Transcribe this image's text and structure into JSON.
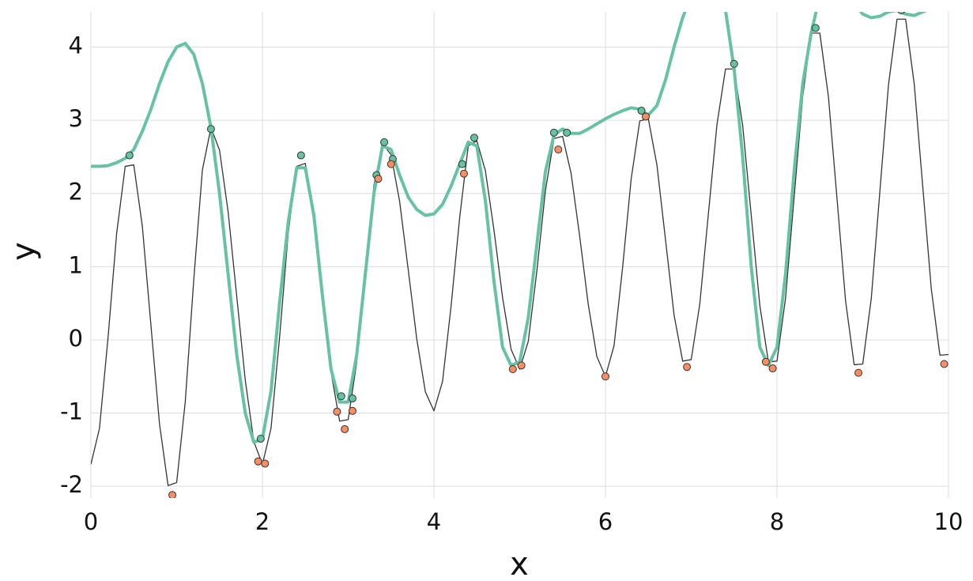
{
  "chart_data": {
    "type": "line",
    "x_label": "x",
    "y_label": "y",
    "xlim": [
      0,
      10
    ],
    "ylim": [
      -2.16,
      4.48
    ],
    "xticks": [
      0,
      2,
      4,
      6,
      8,
      10
    ],
    "yticks": [
      -2,
      -1,
      0,
      1,
      2,
      3,
      4
    ],
    "grid": true,
    "series": [
      {
        "style": "line",
        "color": "#333333",
        "x": [
          0,
          0.1,
          0.2,
          0.3,
          0.4,
          0.5,
          0.6,
          0.7,
          0.8,
          0.9,
          1,
          1.1,
          1.2,
          1.3,
          1.4,
          1.5,
          1.6,
          1.7,
          1.8,
          1.9,
          2,
          2.1,
          2.2,
          2.3,
          2.4,
          2.5,
          2.6,
          2.7,
          2.8,
          2.9,
          3,
          3.1,
          3.2,
          3.3,
          3.4,
          3.5,
          3.6,
          3.7,
          3.8,
          3.9,
          4,
          4.1,
          4.2,
          4.3,
          4.4,
          4.5,
          4.6,
          4.7,
          4.8,
          4.9,
          5,
          5.1,
          5.2,
          5.3,
          5.4,
          5.5,
          5.6,
          5.7,
          5.8,
          5.9,
          6,
          6.1,
          6.2,
          6.3,
          6.4,
          6.5,
          6.6,
          6.7,
          6.8,
          6.9,
          7,
          7.1,
          7.2,
          7.3,
          7.4,
          7.5,
          7.6,
          7.7,
          7.8,
          7.9,
          8,
          8.1,
          8.2,
          8.3,
          8.4,
          8.5,
          8.6,
          8.7,
          8.8,
          8.9,
          9,
          9.1,
          9.2,
          9.3,
          9.4,
          9.5,
          9.6,
          9.7,
          9.8,
          9.9,
          10
        ],
        "values": [
          -1.7,
          -1.21,
          0.03,
          1.45,
          2.37,
          2.39,
          1.55,
          0.2,
          -1.15,
          -1.99,
          -1.95,
          -0.85,
          0.83,
          2.32,
          2.9,
          2.59,
          1.75,
          0.6,
          -0.55,
          -1.39,
          -1.7,
          -1.21,
          0.03,
          1.45,
          2.37,
          2.41,
          1.74,
          0.65,
          -0.44,
          -1.11,
          -1.09,
          -0.3,
          0.95,
          2.11,
          2.68,
          2.53,
          1.89,
          0.96,
          0.01,
          -0.71,
          -0.97,
          -0.57,
          0.46,
          1.67,
          2.65,
          2.72,
          2.31,
          1.5,
          0.58,
          -0.13,
          -0.4,
          -0.02,
          0.94,
          2.04,
          2.75,
          2.78,
          2.27,
          1.41,
          0.48,
          -0.23,
          -0.5,
          -0.08,
          0.99,
          2.2,
          2.99,
          3.02,
          2.39,
          1.37,
          0.34,
          -0.29,
          -0.27,
          0.49,
          1.72,
          2.94,
          3.7,
          3.7,
          2.93,
          1.7,
          0.47,
          -0.3,
          -0.29,
          0.57,
          1.95,
          3.33,
          4.19,
          4.19,
          3.32,
          1.93,
          0.53,
          -0.34,
          -0.33,
          0.57,
          2.03,
          3.48,
          4.38,
          4.38,
          3.5,
          2.09,
          0.69,
          -0.21,
          -0.2
        ]
      },
      {
        "style": "line",
        "color": "#66c2a5",
        "x": [
          0,
          0.1,
          0.2,
          0.3,
          0.4,
          0.5,
          0.6,
          0.7,
          0.8,
          0.9,
          1,
          1.1,
          1.2,
          1.3,
          1.4,
          1.5,
          1.6,
          1.7,
          1.8,
          1.9,
          2,
          2.1,
          2.2,
          2.3,
          2.4,
          2.5,
          2.6,
          2.7,
          2.8,
          2.9,
          3,
          3.1,
          3.2,
          3.3,
          3.4,
          3.5,
          3.6,
          3.7,
          3.8,
          3.9,
          4,
          4.1,
          4.2,
          4.3,
          4.4,
          4.5,
          4.6,
          4.7,
          4.8,
          4.9,
          5,
          5.1,
          5.2,
          5.3,
          5.4,
          5.5,
          5.6,
          5.7,
          5.8,
          5.9,
          6,
          6.1,
          6.2,
          6.3,
          6.4,
          6.5,
          6.6,
          6.7,
          6.8,
          6.9,
          7,
          7.1,
          7.2,
          7.3,
          7.4,
          7.5,
          7.6,
          7.7,
          7.8,
          7.9,
          8,
          8.1,
          8.2,
          8.3,
          8.4,
          8.5,
          8.6,
          8.7,
          8.8,
          8.9,
          9,
          9.1,
          9.2,
          9.3,
          9.4,
          9.5,
          9.6,
          9.7,
          9.8,
          9.9,
          10
        ],
        "values": [
          2.37,
          2.37,
          2.38,
          2.42,
          2.48,
          2.6,
          2.85,
          3.15,
          3.5,
          3.8,
          4.0,
          4.05,
          3.9,
          3.5,
          2.9,
          2.0,
          0.9,
          -0.2,
          -1.0,
          -1.4,
          -1.35,
          -0.7,
          0.5,
          1.6,
          2.35,
          2.35,
          1.7,
          0.6,
          -0.4,
          -0.85,
          -0.85,
          -0.2,
          0.9,
          2.0,
          2.65,
          2.6,
          2.25,
          1.95,
          1.78,
          1.7,
          1.72,
          1.85,
          2.1,
          2.4,
          2.7,
          2.65,
          1.9,
          0.8,
          -0.1,
          -0.35,
          -0.3,
          0.3,
          1.3,
          2.3,
          2.8,
          2.88,
          2.82,
          2.82,
          2.88,
          2.95,
          3.02,
          3.08,
          3.13,
          3.17,
          3.15,
          3.07,
          3.2,
          3.55,
          4.0,
          4.4,
          4.7,
          4.95,
          5.05,
          4.95,
          4.5,
          3.7,
          2.5,
          1.0,
          -0.1,
          -0.35,
          -0.1,
          0.9,
          2.3,
          3.5,
          4.2,
          4.7,
          5.0,
          5.0,
          4.8,
          4.6,
          4.45,
          4.4,
          4.42,
          4.48,
          4.5,
          4.45,
          4.43,
          4.48,
          4.52,
          4.56,
          4.6
        ]
      },
      {
        "style": "points",
        "color": "#66c2a5",
        "x": [
          0.45,
          1.4,
          1.98,
          2.45,
          2.92,
          3.05,
          3.33,
          3.42,
          3.52,
          4.33,
          4.47,
          5.4,
          5.55,
          6.42,
          7.5,
          8.45,
          9.45
        ],
        "values": [
          2.52,
          2.88,
          -1.35,
          2.52,
          -0.77,
          -0.8,
          2.25,
          2.7,
          2.47,
          2.4,
          2.76,
          2.83,
          2.83,
          3.13,
          3.77,
          4.26,
          4.5
        ]
      },
      {
        "style": "points",
        "color": "#fc8d62",
        "x": [
          0.95,
          1.95,
          2.03,
          2.87,
          2.96,
          3.05,
          3.35,
          3.5,
          4.35,
          4.92,
          5.02,
          5.45,
          6.0,
          6.47,
          6.95,
          7.87,
          7.95,
          8.95,
          9.95
        ],
        "values": [
          -2.12,
          -1.66,
          -1.69,
          -0.98,
          -1.22,
          -0.97,
          2.2,
          2.4,
          2.27,
          -0.4,
          -0.35,
          2.6,
          -0.5,
          3.05,
          -0.37,
          -0.3,
          -0.39,
          -0.45,
          -0.33
        ]
      }
    ]
  }
}
